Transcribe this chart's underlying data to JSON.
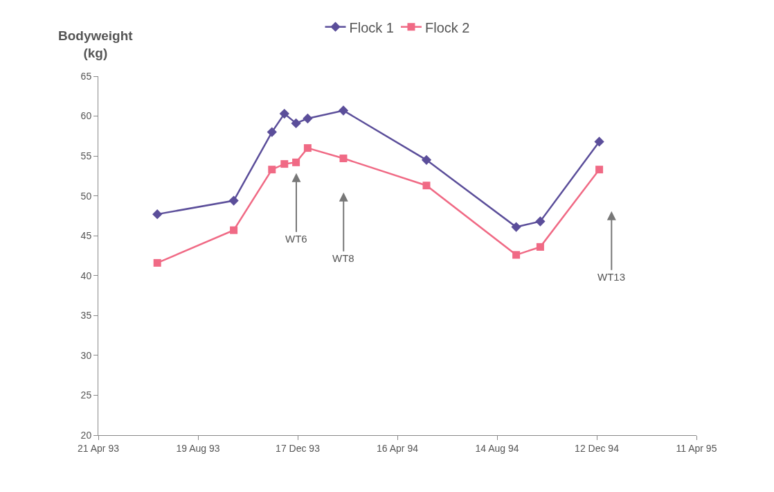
{
  "chart_data": {
    "type": "line",
    "ylabel": "Bodyweight\n(kg)",
    "x": [
      "1993-07-01",
      "1993-10-01",
      "1993-11-16",
      "1993-12-01",
      "1993-12-15",
      "1993-12-29",
      "1994-02-10",
      "1994-05-21",
      "1994-09-06",
      "1994-10-05",
      "1994-12-15"
    ],
    "series": [
      {
        "name": "Flock 1",
        "color": "#5b4e9a",
        "marker": "diamond",
        "values": [
          47.7,
          49.4,
          58.0,
          60.3,
          59.1,
          59.7,
          60.7,
          54.5,
          46.1,
          46.8,
          56.8
        ]
      },
      {
        "name": "Flock 2",
        "color": "#f06a85",
        "marker": "square",
        "values": [
          41.6,
          45.7,
          53.3,
          54.0,
          54.2,
          56.0,
          54.7,
          51.3,
          42.6,
          43.6,
          53.3
        ]
      }
    ],
    "xlim": [
      "1993-04-21",
      "1995-04-11"
    ],
    "xticks": [
      {
        "value": "1993-04-21",
        "label": "21 Apr 93"
      },
      {
        "value": "1993-08-19",
        "label": "19 Aug 93"
      },
      {
        "value": "1993-12-17",
        "label": "17 Dec 93"
      },
      {
        "value": "1994-04-16",
        "label": "16 Apr 94"
      },
      {
        "value": "1994-08-14",
        "label": "14 Aug 94"
      },
      {
        "value": "1994-12-12",
        "label": "12 Dec 94"
      },
      {
        "value": "1995-04-11",
        "label": "11 Apr 95"
      }
    ],
    "ylim": [
      20,
      65
    ],
    "yticks": [
      20,
      25,
      30,
      35,
      40,
      45,
      50,
      55,
      60,
      65
    ],
    "annotations": [
      "WT6",
      "WT8",
      "WT13"
    ],
    "legend": "top",
    "line_style": "solid"
  }
}
